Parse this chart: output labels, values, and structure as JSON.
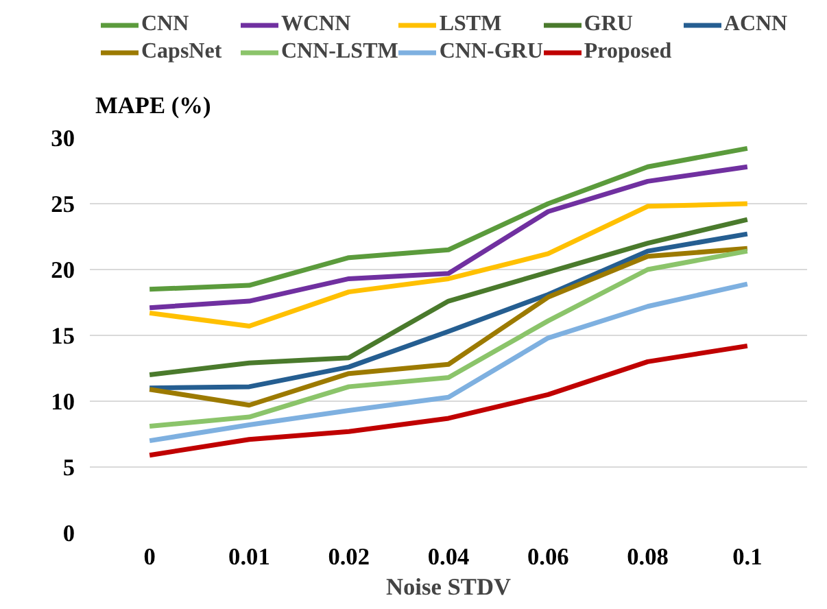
{
  "chart_data": {
    "type": "line",
    "xlabel": "Noise STDV",
    "ylabel": "MAPE (%)",
    "categories": [
      "0",
      "0.01",
      "0.02",
      "0.04",
      "0.06",
      "0.08",
      "0.1"
    ],
    "ylim": [
      0,
      30
    ],
    "yticks": [
      0,
      5,
      10,
      15,
      20,
      25,
      30
    ],
    "grid": "y",
    "legend": "top",
    "marker": "none",
    "line_style": "solid",
    "series": [
      {
        "name": "CNN",
        "color": "#5b9b3c",
        "values": [
          18.5,
          18.8,
          20.9,
          21.5,
          25.0,
          27.8,
          29.2
        ]
      },
      {
        "name": "WCNN",
        "color": "#7030a0",
        "values": [
          17.1,
          17.6,
          19.3,
          19.7,
          24.4,
          26.7,
          27.8
        ]
      },
      {
        "name": "LSTM",
        "color": "#ffc000",
        "values": [
          16.7,
          15.7,
          18.3,
          19.3,
          21.2,
          24.8,
          25.0
        ]
      },
      {
        "name": "GRU",
        "color": "#4a7a2c",
        "values": [
          12.0,
          12.9,
          13.3,
          17.6,
          19.8,
          22.0,
          23.8
        ]
      },
      {
        "name": "ACNN",
        "color": "#255e91",
        "values": [
          11.0,
          11.1,
          12.6,
          15.3,
          18.1,
          21.4,
          22.7
        ]
      },
      {
        "name": "CapsNet",
        "color": "#9c7a00",
        "values": [
          10.9,
          9.7,
          12.1,
          12.8,
          17.9,
          21.0,
          21.6
        ]
      },
      {
        "name": "CNN-LSTM",
        "color": "#8bc46a",
        "values": [
          8.1,
          8.8,
          11.1,
          11.8,
          16.1,
          20.0,
          21.4
        ]
      },
      {
        "name": "CNN-GRU",
        "color": "#7eb0e0",
        "values": [
          7.0,
          8.2,
          9.3,
          10.3,
          14.8,
          17.2,
          18.9
        ]
      },
      {
        "name": "Proposed",
        "color": "#c00000",
        "values": [
          5.9,
          7.1,
          7.7,
          8.7,
          10.5,
          13.0,
          14.2
        ]
      }
    ]
  }
}
